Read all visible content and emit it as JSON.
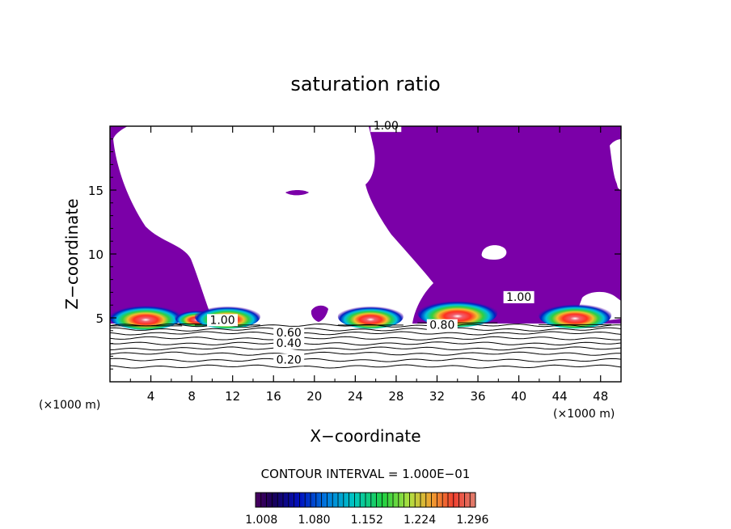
{
  "chart_data": {
    "type": "contour",
    "title": "saturation ratio",
    "xlabel": "X−coordinate",
    "ylabel": "Z−coordinate",
    "x_units_left": "(×1000 m)",
    "x_units_right": "(×1000 m)",
    "xlim": [
      0,
      50
    ],
    "ylim": [
      0,
      20
    ],
    "x_ticks": [
      "4",
      "8",
      "12",
      "16",
      "20",
      "24",
      "28",
      "32",
      "36",
      "40",
      "44",
      "48"
    ],
    "y_ticks": [
      "5",
      "10",
      "15"
    ],
    "contour_interval_text": "CONTOUR INTERVAL = 1.000E−01",
    "colorbar_labels": [
      "1.008",
      "1.080",
      "1.152",
      "1.224",
      "1.296"
    ],
    "colorbar_range": [
      1.0,
      1.3
    ],
    "contour_labels": [
      {
        "text": "1.00",
        "x": 27,
        "z": 19.8
      },
      {
        "text": "1.00",
        "x": 11,
        "z": 4.6
      },
      {
        "text": "1.00",
        "x": 40,
        "z": 6.4
      },
      {
        "text": "0.80",
        "x": 32.5,
        "z": 4.2
      },
      {
        "text": "0.60",
        "x": 17.5,
        "z": 3.6
      },
      {
        "text": "0.40",
        "x": 17.5,
        "z": 2.8
      },
      {
        "text": "0.20",
        "x": 17.5,
        "z": 1.5
      }
    ],
    "cloud_cores": [
      {
        "x_center": 3.5,
        "z_center": 5.1,
        "peak": 1.3
      },
      {
        "x_center": 8.5,
        "z_center": 5.0,
        "peak": 1.1
      },
      {
        "x_center": 11.5,
        "z_center": 5.1,
        "peak": 1.25
      },
      {
        "x_center": 25.5,
        "z_center": 5.1,
        "peak": 1.25
      },
      {
        "x_center": 34.0,
        "z_center": 5.4,
        "peak": 1.35
      },
      {
        "x_center": 45.5,
        "z_center": 5.2,
        "peak": 1.3
      }
    ],
    "colors": {
      "supersaturated_fill": "#7b00a8",
      "background": "#ffffff",
      "contour_line": "#000000"
    }
  }
}
